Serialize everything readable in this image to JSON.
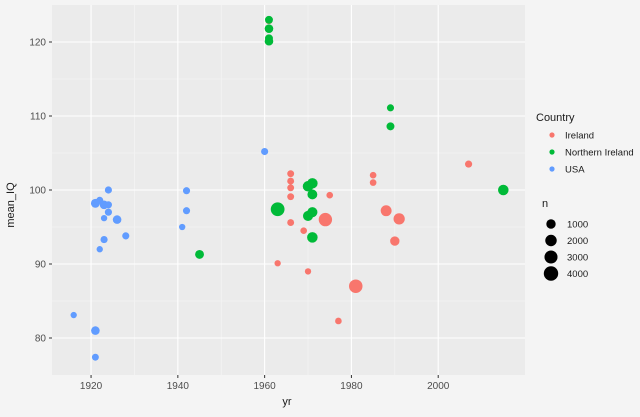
{
  "colors": {
    "Ireland": "#F8766D",
    "Northern Ireland": "#00BA38",
    "USA": "#619CFF",
    "panel": "#EBEBEB",
    "grid_major": "#FFFFFF",
    "grid_minor": "#F6F6F6"
  },
  "chart_data": {
    "type": "scatter",
    "title": "",
    "xlabel": "yr",
    "ylabel": "mean_IQ",
    "xlim": [
      1911,
      2020
    ],
    "ylim": [
      75,
      125
    ],
    "x_ticks": [
      1920,
      1940,
      1960,
      1980,
      2000
    ],
    "y_ticks": [
      80,
      90,
      100,
      110,
      120
    ],
    "grid": true,
    "legend": {
      "position": "right",
      "color_title": "Country",
      "size_title": "n",
      "size_entries": [
        1000,
        2000,
        3000,
        4000
      ]
    },
    "series": [
      {
        "name": "Ireland",
        "points": [
          {
            "x": 1961,
            "y": 122.9,
            "n": 300
          },
          {
            "x": 1963,
            "y": 90.1,
            "n": 150
          },
          {
            "x": 1966,
            "y": 102.2,
            "n": 250
          },
          {
            "x": 1966,
            "y": 101.2,
            "n": 250
          },
          {
            "x": 1966,
            "y": 100.3,
            "n": 250
          },
          {
            "x": 1966,
            "y": 99.1,
            "n": 250
          },
          {
            "x": 1966,
            "y": 95.6,
            "n": 250
          },
          {
            "x": 1969,
            "y": 94.5,
            "n": 200
          },
          {
            "x": 1970,
            "y": 89.0,
            "n": 150
          },
          {
            "x": 1974,
            "y": 96.0,
            "n": 3200
          },
          {
            "x": 1975,
            "y": 99.3,
            "n": 200
          },
          {
            "x": 1977,
            "y": 82.3,
            "n": 200
          },
          {
            "x": 1981,
            "y": 87.0,
            "n": 3300
          },
          {
            "x": 1985,
            "y": 102.0,
            "n": 200
          },
          {
            "x": 1985,
            "y": 101.0,
            "n": 200
          },
          {
            "x": 1988,
            "y": 97.2,
            "n": 1700
          },
          {
            "x": 1990,
            "y": 93.1,
            "n": 1000
          },
          {
            "x": 1991,
            "y": 96.1,
            "n": 1900
          },
          {
            "x": 2007,
            "y": 103.5,
            "n": 300
          }
        ]
      },
      {
        "name": "Northern Ireland",
        "points": [
          {
            "x": 1945,
            "y": 91.3,
            "n": 800
          },
          {
            "x": 1961,
            "y": 123.0,
            "n": 500
          },
          {
            "x": 1961,
            "y": 121.8,
            "n": 700
          },
          {
            "x": 1961,
            "y": 120.5,
            "n": 500
          },
          {
            "x": 1961,
            "y": 120.1,
            "n": 700
          },
          {
            "x": 1963,
            "y": 97.4,
            "n": 3500
          },
          {
            "x": 1970,
            "y": 100.5,
            "n": 1500
          },
          {
            "x": 1970,
            "y": 96.5,
            "n": 1300
          },
          {
            "x": 1971,
            "y": 100.9,
            "n": 1500
          },
          {
            "x": 1971,
            "y": 99.4,
            "n": 1200
          },
          {
            "x": 1971,
            "y": 97.0,
            "n": 1300
          },
          {
            "x": 1971,
            "y": 93.6,
            "n": 1500
          },
          {
            "x": 1989,
            "y": 111.1,
            "n": 300
          },
          {
            "x": 1989,
            "y": 108.6,
            "n": 500
          },
          {
            "x": 2015,
            "y": 100.0,
            "n": 1500
          }
        ]
      },
      {
        "name": "USA",
        "points": [
          {
            "x": 1916,
            "y": 83.1,
            "n": 150
          },
          {
            "x": 1921,
            "y": 98.2,
            "n": 800
          },
          {
            "x": 1921,
            "y": 81.0,
            "n": 700
          },
          {
            "x": 1921,
            "y": 77.4,
            "n": 250
          },
          {
            "x": 1922,
            "y": 92.0,
            "n": 150
          },
          {
            "x": 1922,
            "y": 98.6,
            "n": 300
          },
          {
            "x": 1923,
            "y": 96.2,
            "n": 150
          },
          {
            "x": 1923,
            "y": 93.3,
            "n": 300
          },
          {
            "x": 1923,
            "y": 98.0,
            "n": 700
          },
          {
            "x": 1924,
            "y": 100.0,
            "n": 300
          },
          {
            "x": 1924,
            "y": 97.0,
            "n": 300
          },
          {
            "x": 1924,
            "y": 98.0,
            "n": 300
          },
          {
            "x": 1926,
            "y": 96.0,
            "n": 700
          },
          {
            "x": 1928,
            "y": 93.8,
            "n": 300
          },
          {
            "x": 1941,
            "y": 95.0,
            "n": 150
          },
          {
            "x": 1942,
            "y": 99.9,
            "n": 300
          },
          {
            "x": 1942,
            "y": 97.2,
            "n": 300
          },
          {
            "x": 1960,
            "y": 105.2,
            "n": 300
          }
        ]
      }
    ]
  }
}
